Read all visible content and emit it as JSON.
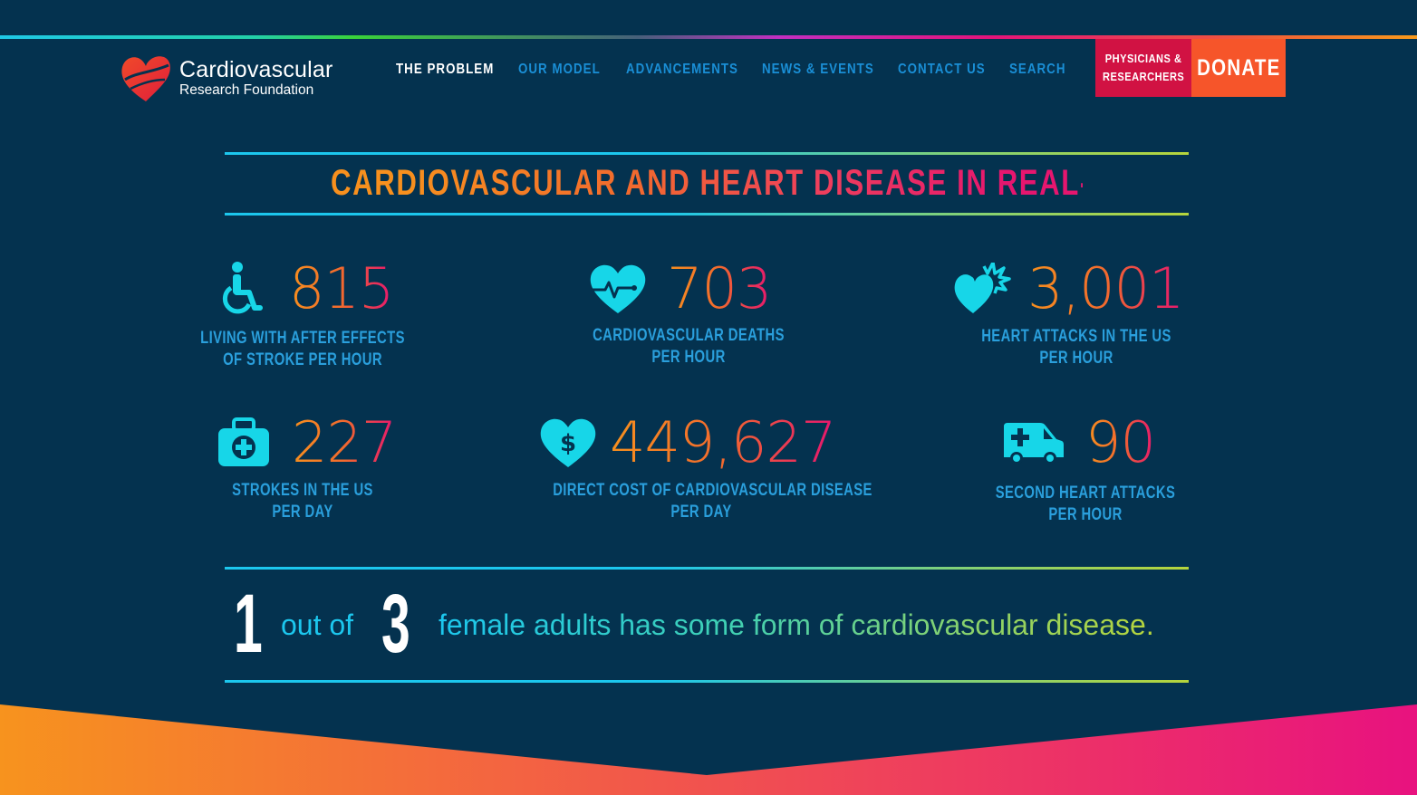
{
  "brand": {
    "name_line1": "Cardiovascular",
    "name_line2": "Research Foundation",
    "colors": {
      "background": "#04324f",
      "accent_orange": "#f7901e",
      "accent_pink": "#e6166f",
      "accent_cyan": "#1cc7ee",
      "nav_blue": "#1a8fd6"
    }
  },
  "nav": {
    "items": [
      {
        "label": "THE PROBLEM",
        "active": true
      },
      {
        "label": "OUR MODEL",
        "active": false
      },
      {
        "label": "ADVANCEMENTS",
        "active": false
      },
      {
        "label": "NEWS & EVENTS",
        "active": false
      },
      {
        "label": "CONTACT US",
        "active": false
      },
      {
        "label": "SEARCH",
        "active": false
      }
    ],
    "physicians_line1": "PHYSICIANS &",
    "physicians_line2": "RESEARCHERS",
    "donate": "DONATE"
  },
  "headline": "CARDIOVASCULAR AND HEART DISEASE IN REAL-TIME",
  "stats": [
    {
      "value": "815",
      "label_line1": "LIVING WITH AFTER EFFECTS",
      "label_line2": "OF STROKE PER HOUR",
      "icon": "wheelchair-icon"
    },
    {
      "value": "703",
      "label_line1": "CARDIOVASCULAR DEATHS",
      "label_line2": "PER HOUR",
      "icon": "heart-pulse-icon"
    },
    {
      "value": "3,001",
      "label_line1": "HEART ATTACKS IN THE US",
      "label_line2": "PER HOUR",
      "icon": "heart-burst-icon"
    },
    {
      "value": "227",
      "label_line1": "STROKES IN THE US",
      "label_line2": "PER DAY",
      "icon": "medical-kit-icon"
    },
    {
      "value": "449,627",
      "label_line1": "DIRECT COST OF CARDIOVASCULAR DISEASE",
      "label_line2": "PER DAY",
      "icon": "heart-dollar-icon"
    },
    {
      "value": "90",
      "label_line1": "SECOND HEART ATTACKS",
      "label_line2": "PER HOUR",
      "icon": "ambulance-icon"
    }
  ],
  "fact": {
    "num1": "1",
    "out_of": "out of",
    "num2": "3",
    "rest": "female adults has some form of cardiovascular disease."
  }
}
